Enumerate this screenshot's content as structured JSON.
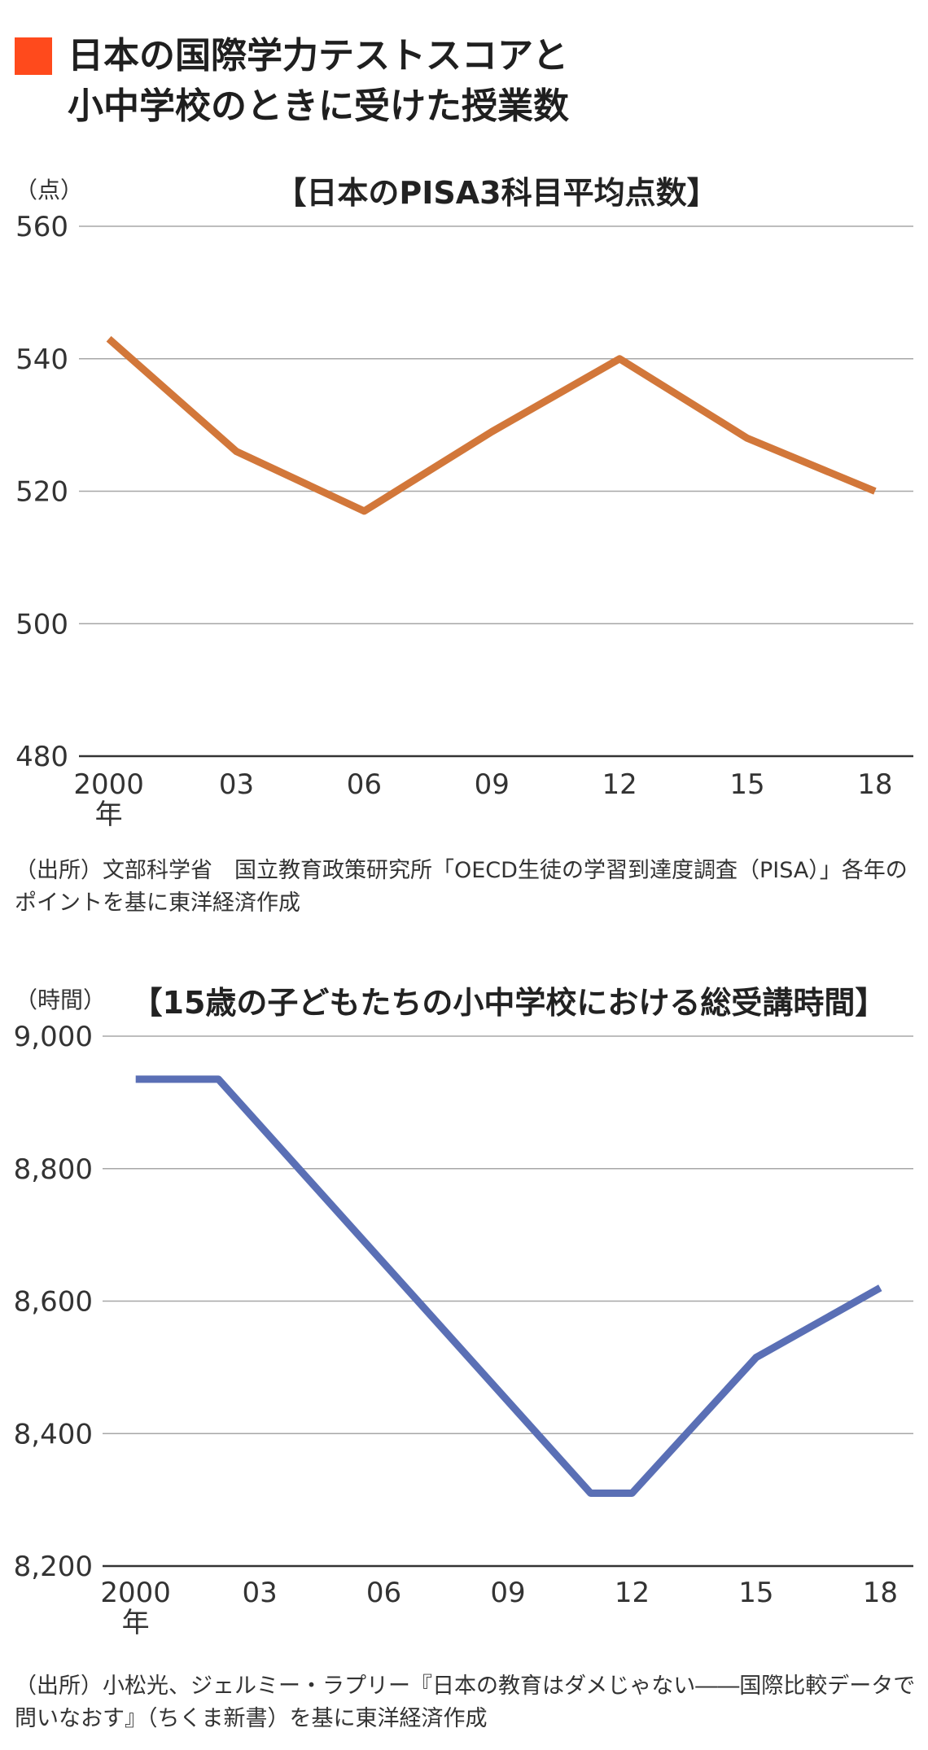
{
  "header": {
    "title_line1": "日本の国際学力テストスコアと",
    "title_line2": "小中学校のときに受けた授業数",
    "accent_color": "#ff4a1c"
  },
  "chart_data": [
    {
      "type": "line",
      "title": "【日本のPISA3科目平均点数】",
      "unit_label": "（点）",
      "x_tick_labels": [
        "2000",
        "03",
        "06",
        "09",
        "12",
        "15",
        "18"
      ],
      "x_year_label": "年",
      "x": [
        2000,
        2003,
        2006,
        2009,
        2012,
        2015,
        2018
      ],
      "y_ticks": [
        480,
        500,
        520,
        540,
        560
      ],
      "y_tick_labels": [
        "480",
        "500",
        "520",
        "540",
        "560"
      ],
      "ylim": [
        480,
        560
      ],
      "xlim": [
        1999.3,
        2018.9
      ],
      "grid": true,
      "series": [
        {
          "values": [
            543,
            526,
            517,
            529,
            540,
            528,
            520
          ],
          "color": "#d2773a"
        }
      ],
      "source": "（出所）文部科学省　国立教育政策研究所「OECD生徒の学習到達度調査（PISA）」各年のポイントを基に東洋経済作成"
    },
    {
      "type": "line",
      "title": "【15歳の子どもたちの小中学校における総受講時間】",
      "unit_label": "（時間）",
      "x_tick_labels": [
        "2000",
        "03",
        "06",
        "09",
        "12",
        "15",
        "18"
      ],
      "x_year_label": "年",
      "x_ticks": [
        2000,
        2003,
        2006,
        2009,
        2012,
        2015,
        2018
      ],
      "x": [
        2000,
        2002,
        2011,
        2012,
        2015,
        2018
      ],
      "y_ticks": [
        8200,
        8400,
        8600,
        8800,
        9000
      ],
      "y_tick_labels": [
        "8,200",
        "8,400",
        "8,600",
        "8,800",
        "9,000"
      ],
      "ylim": [
        8200,
        9000
      ],
      "xlim": [
        1999.2,
        2018.8
      ],
      "grid": true,
      "series": [
        {
          "values": [
            8935,
            8935,
            8310,
            8310,
            8515,
            8620
          ],
          "color": "#5a6fb5"
        }
      ],
      "source": "（出所）小松光、ジェルミー・ラプリー『日本の教育はダメじゃない――国際比較データで問いなおす』（ちくま新書）を基に東洋経済作成"
    }
  ]
}
